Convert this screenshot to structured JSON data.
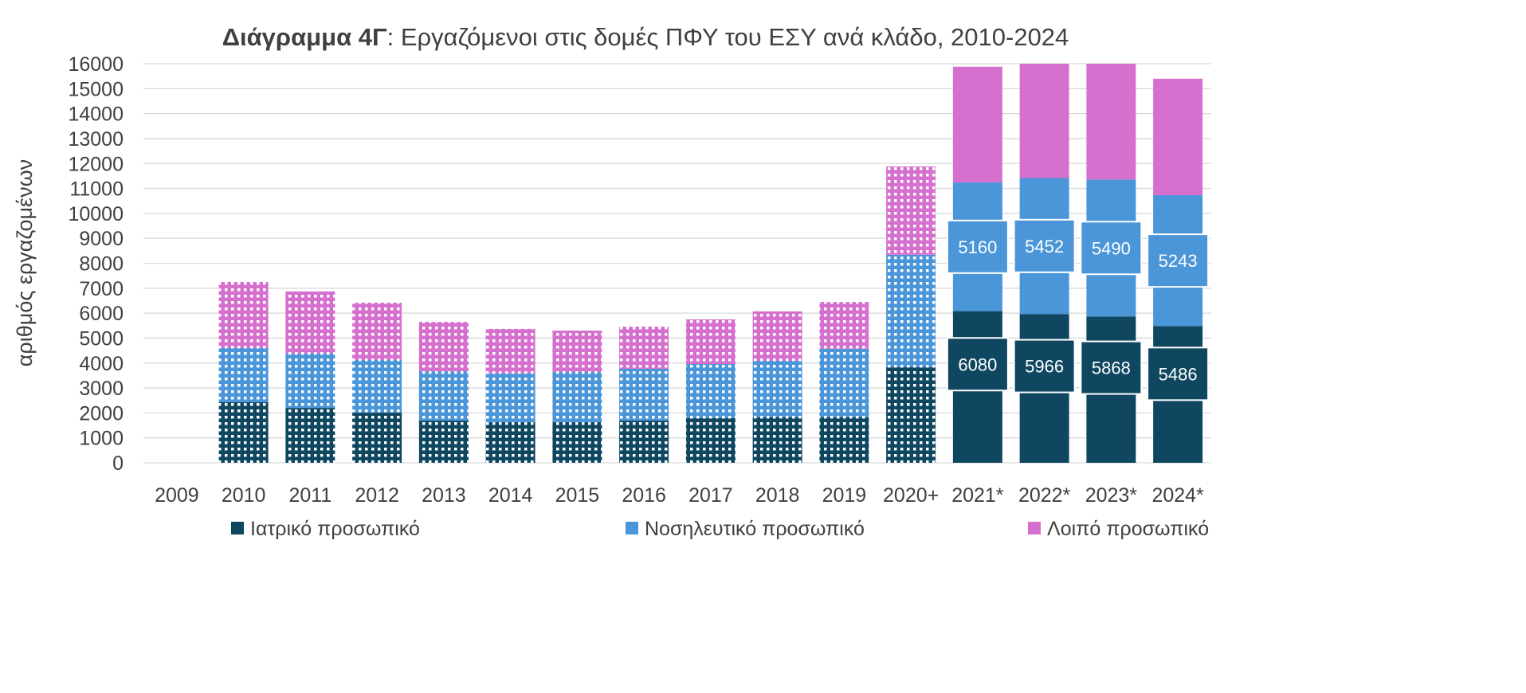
{
  "chart_data": {
    "type": "bar",
    "stacked": true,
    "title_bold": "Διάγραμμα 4Γ",
    "title_rest": ": Εργαζόμενοι στις δομές ΠΦΥ του ΕΣΥ ανά κλάδο, 2010-2024",
    "xlabel": "",
    "ylabel": "αριθμός εργαζομένων",
    "ylim": [
      0,
      16000
    ],
    "yticks": [
      0,
      1000,
      2000,
      3000,
      4000,
      5000,
      6000,
      7000,
      8000,
      9000,
      10000,
      11000,
      12000,
      13000,
      14000,
      15000,
      16000
    ],
    "grid": true,
    "legend_position": "bottom",
    "categories": [
      "2009",
      "2010",
      "2011",
      "2012",
      "2013",
      "2014",
      "2015",
      "2016",
      "2017",
      "2018",
      "2019",
      "2020+",
      "2021*",
      "2022*",
      "2023*",
      "2024*"
    ],
    "patterned_categories": [
      "2010",
      "2011",
      "2012",
      "2013",
      "2014",
      "2015",
      "2016",
      "2017",
      "2018",
      "2019",
      "2020+"
    ],
    "series": [
      {
        "name": "Ιατρικό προσωπικό",
        "color": "#0f4761",
        "values": [
          0,
          2430,
          2200,
          2010,
          1690,
          1630,
          1630,
          1690,
          1790,
          1820,
          1820,
          3830,
          6080,
          5966,
          5868,
          5486
        ],
        "labeled": [
          false,
          false,
          false,
          false,
          false,
          false,
          false,
          false,
          false,
          false,
          false,
          false,
          true,
          true,
          true,
          true
        ]
      },
      {
        "name": "Νοσηλευτικό προσωπικό",
        "color": "#4a96d9",
        "values": [
          0,
          2170,
          2180,
          2110,
          1980,
          1950,
          2010,
          2080,
          2170,
          2270,
          2750,
          4510,
          5160,
          5452,
          5490,
          5243
        ],
        "labeled": [
          false,
          false,
          false,
          false,
          false,
          false,
          false,
          false,
          false,
          false,
          false,
          false,
          true,
          true,
          true,
          true
        ]
      },
      {
        "name": "Λοιπό προσωπικό",
        "color": "#d670cf",
        "values": [
          0,
          2650,
          2490,
          2300,
          1980,
          1790,
          1660,
          1690,
          1790,
          1980,
          1880,
          3540,
          4640,
          4800,
          4700,
          4670
        ],
        "labeled": [
          false,
          false,
          false,
          false,
          false,
          false,
          false,
          false,
          false,
          false,
          false,
          false,
          false,
          false,
          false,
          false
        ]
      }
    ]
  }
}
